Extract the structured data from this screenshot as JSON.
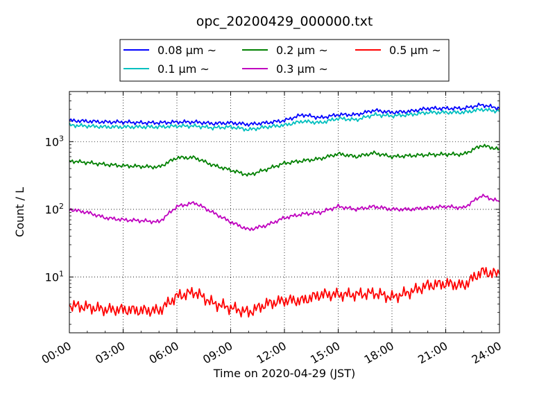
{
  "chart_data": {
    "type": "line",
    "title": "opc_20200429_000000.txt",
    "xlabel": "Time on 2020-04-29 (JST)",
    "ylabel": "Count / L",
    "yscale": "log",
    "ylim": [
      1.5,
      5500
    ],
    "xlim": [
      "00:00",
      "24:00"
    ],
    "grid": true,
    "legend_position": "top-center",
    "x_ticks": [
      "00:00",
      "03:00",
      "06:00",
      "09:00",
      "12:00",
      "15:00",
      "18:00",
      "21:00",
      "24:00"
    ],
    "y_ticks": [
      {
        "value": 10,
        "base": "10",
        "exp": "1"
      },
      {
        "value": 100,
        "base": "10",
        "exp": "2"
      },
      {
        "value": 1000,
        "base": "10",
        "exp": "3"
      }
    ],
    "x": [
      "00:00",
      "01:00",
      "02:00",
      "03:00",
      "04:00",
      "05:00",
      "06:00",
      "07:00",
      "08:00",
      "09:00",
      "10:00",
      "11:00",
      "12:00",
      "13:00",
      "14:00",
      "15:00",
      "16:00",
      "17:00",
      "18:00",
      "19:00",
      "20:00",
      "21:00",
      "22:00",
      "23:00",
      "24:00"
    ],
    "series": [
      {
        "name": "0.08 μm ~",
        "color": "#0000ff",
        "values": [
          2050,
          2000,
          1950,
          1950,
          1900,
          1900,
          1950,
          1950,
          1850,
          1900,
          1800,
          1900,
          2050,
          2500,
          2250,
          2500,
          2500,
          2900,
          2700,
          2800,
          3100,
          3100,
          3100,
          3500,
          3100
        ]
      },
      {
        "name": "0.1 μm ~",
        "color": "#00bfbf",
        "values": [
          1750,
          1700,
          1650,
          1650,
          1650,
          1650,
          1700,
          1700,
          1600,
          1650,
          1500,
          1650,
          1750,
          2000,
          1900,
          2200,
          2100,
          2500,
          2400,
          2500,
          2700,
          2700,
          2700,
          3000,
          2800
        ]
      },
      {
        "name": "0.2 μm ~",
        "color": "#008000",
        "values": [
          520,
          490,
          460,
          440,
          430,
          420,
          580,
          580,
          450,
          380,
          320,
          390,
          480,
          520,
          560,
          660,
          600,
          680,
          600,
          620,
          640,
          650,
          650,
          880,
          770
        ]
      },
      {
        "name": "0.3 μm ~",
        "color": "#bf00bf",
        "values": [
          100,
          90,
          75,
          70,
          68,
          65,
          110,
          125,
          90,
          65,
          50,
          58,
          75,
          85,
          90,
          110,
          100,
          110,
          100,
          100,
          105,
          110,
          105,
          160,
          130
        ]
      },
      {
        "name": "0.5 μm ~",
        "color": "#ff0000",
        "values": [
          3.8,
          3.6,
          3.3,
          3.3,
          3.2,
          3.2,
          5.2,
          6.0,
          4.1,
          3.5,
          3.0,
          4.0,
          4.5,
          4.5,
          5.5,
          5.5,
          5.5,
          5.8,
          5.0,
          6.0,
          7.5,
          8.0,
          7.5,
          12,
          11
        ]
      }
    ]
  }
}
